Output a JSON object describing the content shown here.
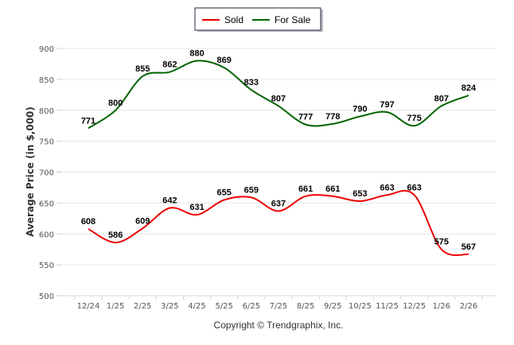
{
  "chart_data": {
    "type": "line",
    "title": "",
    "xlabel": "",
    "ylabel": "Average Price (in $,000)",
    "ylim": [
      500,
      900
    ],
    "yticks": [
      "500",
      "550",
      "600",
      "650",
      "700",
      "750",
      "800",
      "850",
      "900"
    ],
    "grid": true,
    "legend_position": "top-center",
    "categories": [
      "12/24",
      "1/25",
      "2/25",
      "3/25",
      "4/25",
      "5/25",
      "6/25",
      "7/25",
      "8/25",
      "9/25",
      "10/25",
      "11/25",
      "12/25",
      "1/26",
      "2/26"
    ],
    "series": [
      {
        "name": "Sold",
        "color": "#ee0000",
        "values": [
          608,
          586,
          609,
          642,
          631,
          655,
          659,
          637,
          661,
          661,
          653,
          663,
          663,
          575,
          567
        ]
      },
      {
        "name": "For Sale",
        "color": "#006400",
        "values": [
          771,
          800,
          855,
          862,
          880,
          869,
          833,
          807,
          777,
          778,
          790,
          797,
          775,
          807,
          824
        ]
      }
    ]
  },
  "footer": {
    "copyright": "Copyright © Trendgraphix, Inc."
  }
}
